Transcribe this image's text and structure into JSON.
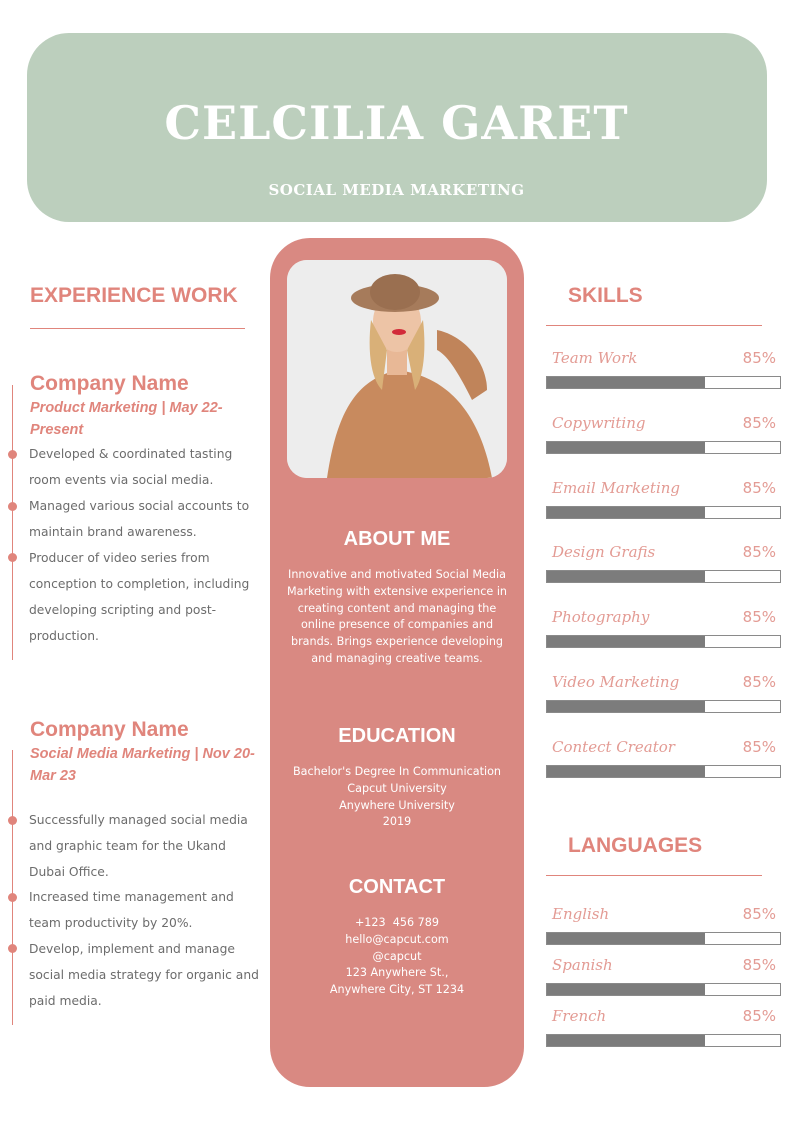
{
  "header": {
    "name": "CELCILIA GARET",
    "title": "SOCIAL MEDIA MARKETING",
    "color": "#bccfbd"
  },
  "accent_color": "#e0857c",
  "experience": {
    "heading": "EXPERIENCE WORK",
    "jobs": [
      {
        "company": "Company Name",
        "role": "Product Marketing | May 22-Present",
        "bullets": [
          "Developed & coordinated tasting room events via social media.",
          "Managed various social accounts to maintain brand awareness.",
          "Producer of video series from conception to completion, including developing scripting and post-production."
        ]
      },
      {
        "company": "Company Name",
        "role": "Social Media Marketing | Nov 20-Mar 23",
        "bullets": [
          "Successfully managed social media and graphic team for the Ukand Dubai Office.",
          "Increased time management and team productivity by 20%.",
          "Develop, implement and manage social media strategy for organic and paid media."
        ]
      }
    ]
  },
  "center": {
    "photo": "portrait-photo",
    "about_heading": "ABOUT ME",
    "about_text": "Innovative and motivated Social Media Marketing with extensive experience in creating content and managing the online presence of companies and brands. Brings experience developing and managing creative teams.",
    "education_heading": "EDUCATION",
    "education": [
      "Bachelor's Degree In Communication",
      "Capcut University",
      "Anywhere University",
      "2019"
    ],
    "contact_heading": "CONTACT",
    "contact": [
      "+123  456 789",
      "hello@capcut.com",
      "@capcut",
      "123 Anywhere St.,",
      "Anywhere City, ST 1234"
    ],
    "color": "#d98982"
  },
  "skills": {
    "heading": "SKILLS",
    "items": [
      {
        "label": "Team Work",
        "percent": "85%",
        "bar_fill": 0.68
      },
      {
        "label": "Copywriting",
        "percent": "85%",
        "bar_fill": 0.68
      },
      {
        "label": "Email Marketing",
        "percent": "85%",
        "bar_fill": 0.68
      },
      {
        "label": "Design Grafis",
        "percent": "85%",
        "bar_fill": 0.68
      },
      {
        "label": "Photography",
        "percent": "85%",
        "bar_fill": 0.68
      },
      {
        "label": "Video Marketing",
        "percent": "85%",
        "bar_fill": 0.68
      },
      {
        "label": "Contect Creator",
        "percent": "85%",
        "bar_fill": 0.68
      }
    ]
  },
  "languages": {
    "heading": "LANGUAGES",
    "items": [
      {
        "label": "English",
        "percent": "85%",
        "bar_fill": 0.68
      },
      {
        "label": "Spanish",
        "percent": "85%",
        "bar_fill": 0.68
      },
      {
        "label": "French",
        "percent": "85%",
        "bar_fill": 0.68
      }
    ]
  }
}
